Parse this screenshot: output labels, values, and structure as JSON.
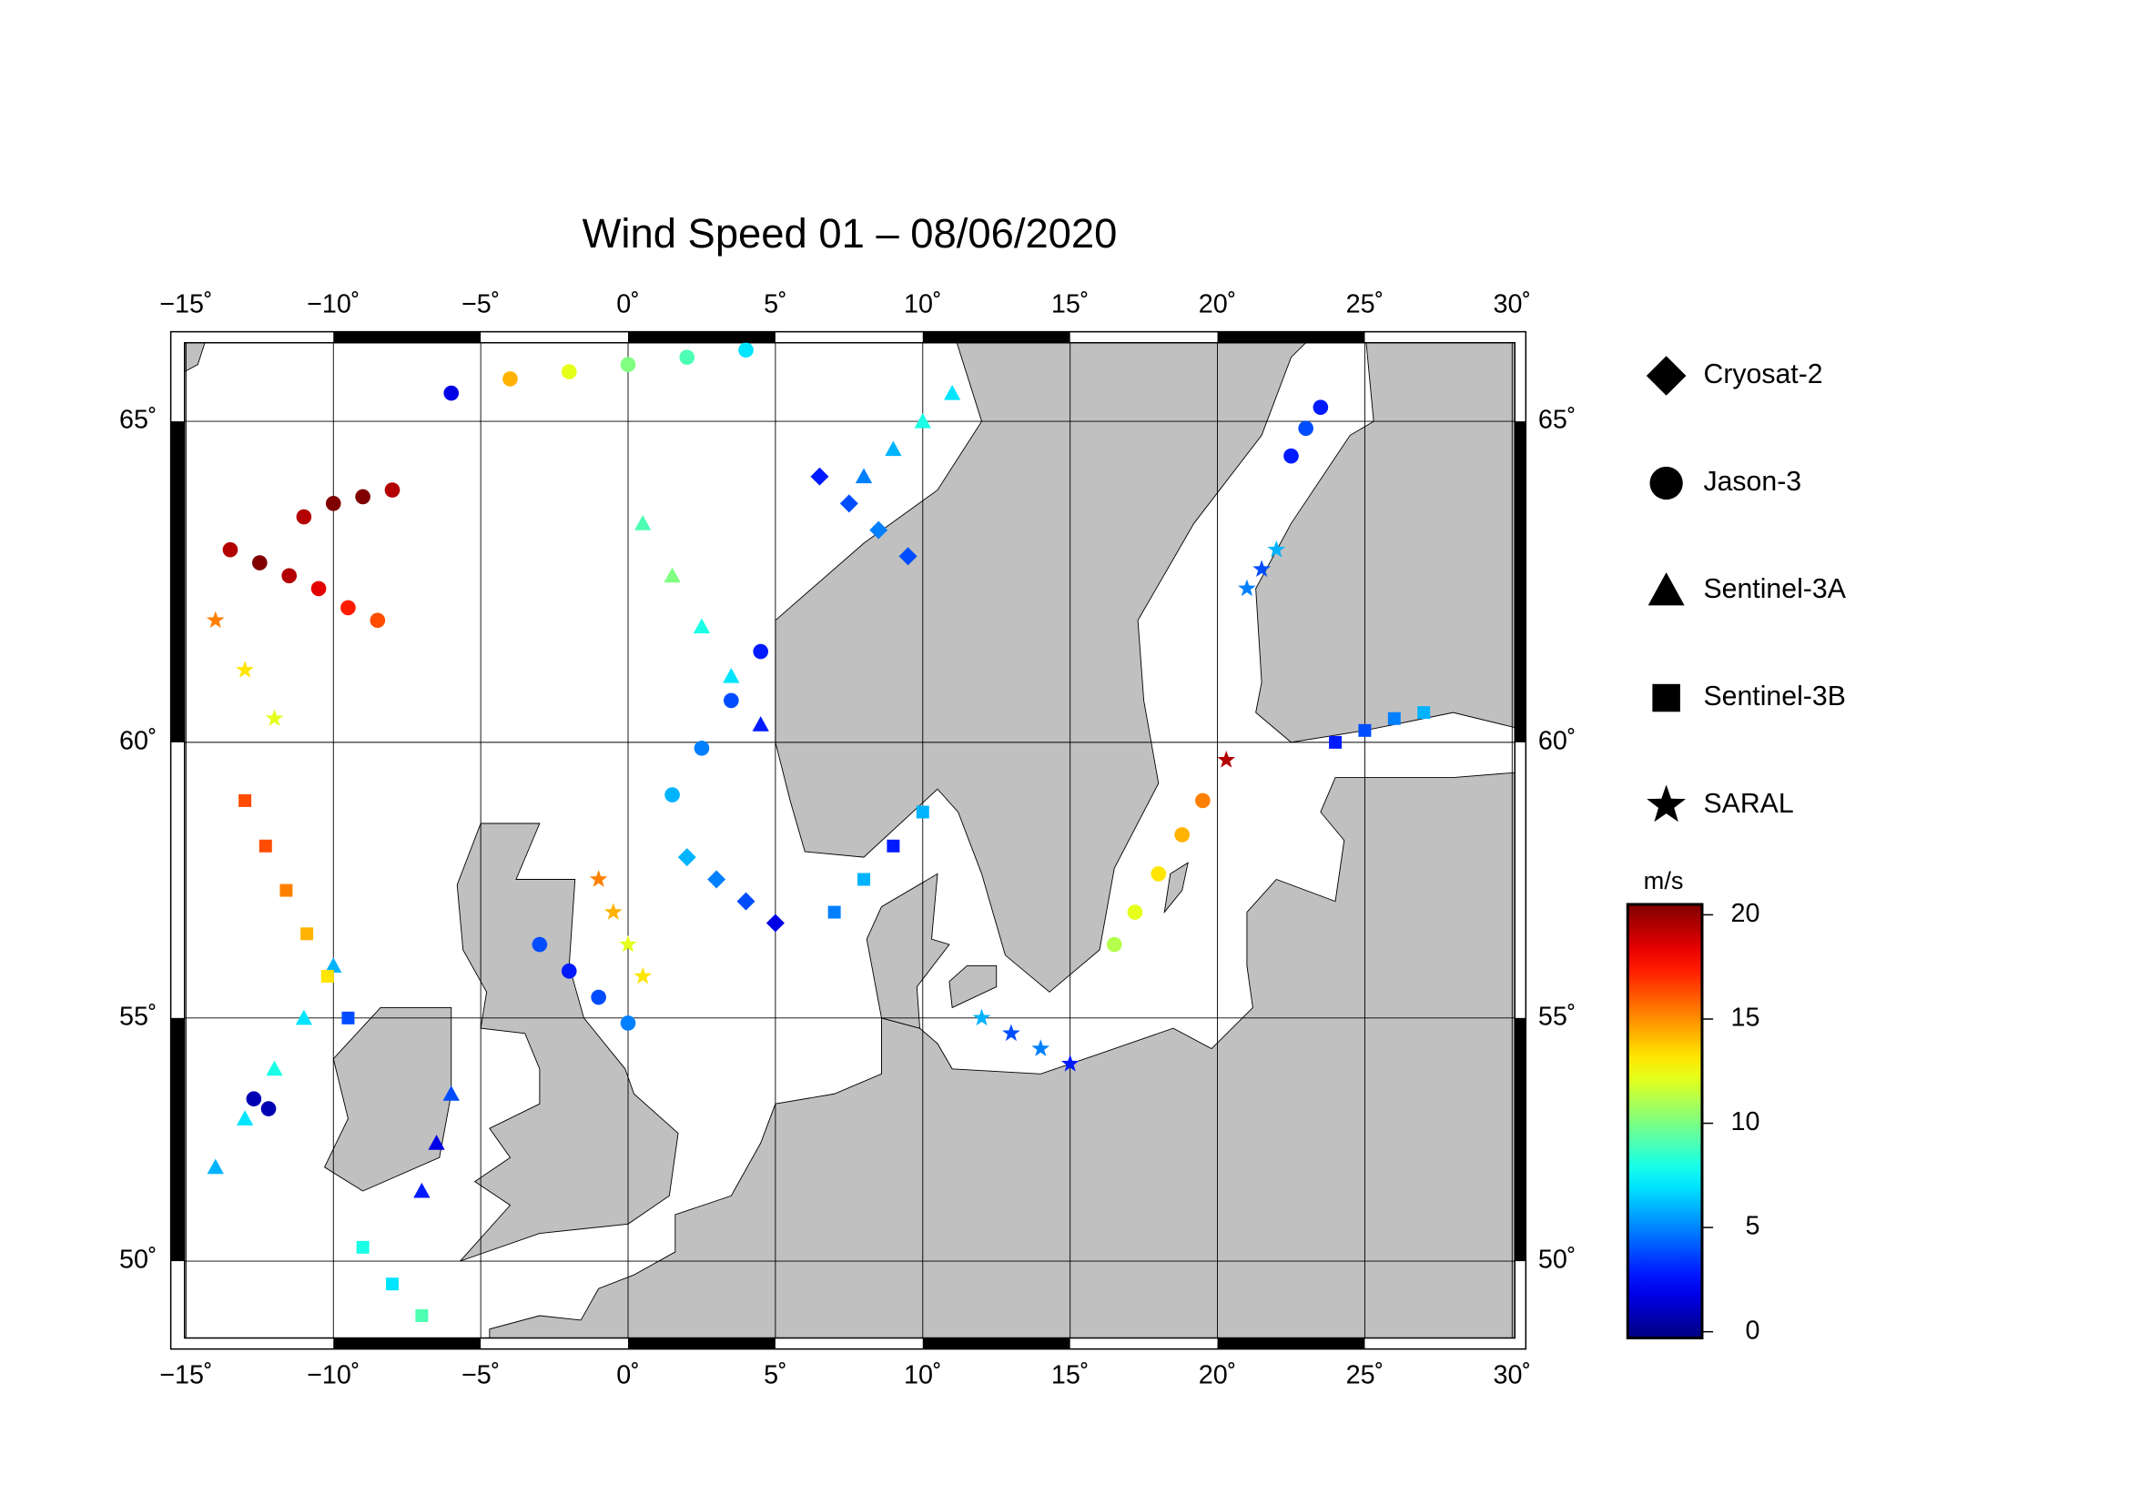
{
  "chart_data": {
    "type": "map",
    "title": "Wind Speed 01 – 08/06/2020",
    "xlim": [
      -15.05,
      30.09
    ],
    "ylim": [
      48.3,
      66.1
    ],
    "xticks": [
      {
        "value": -15,
        "label": "−15˚"
      },
      {
        "value": -10,
        "label": "−10˚"
      },
      {
        "value": -5,
        "label": "−5˚"
      },
      {
        "value": 0,
        "label": "0˚"
      },
      {
        "value": 5,
        "label": "5˚"
      },
      {
        "value": 10,
        "label": "10˚"
      },
      {
        "value": 15,
        "label": "15˚"
      },
      {
        "value": 20,
        "label": "20˚"
      },
      {
        "value": 25,
        "label": "25˚"
      },
      {
        "value": 30,
        "label": "30˚"
      }
    ],
    "yticks": [
      {
        "value": 50,
        "label": "50˚"
      },
      {
        "value": 55,
        "label": "55˚"
      },
      {
        "value": 60,
        "label": "60˚"
      },
      {
        "value": 65,
        "label": "65˚"
      }
    ],
    "grid": true,
    "colorbar": {
      "label": "m/s",
      "lim": [
        -0.3,
        20.5
      ],
      "ticks": [
        0,
        5,
        10,
        15,
        20
      ]
    },
    "series": [
      {
        "name": "Cryosat-2",
        "marker": "diamond",
        "lon": [
          6.5,
          7.5,
          8.5,
          9.5,
          2.0,
          3.0,
          4.0,
          5.0
        ],
        "lat": [
          64.2,
          63.8,
          63.4,
          63.0,
          58.0,
          57.6,
          57.2,
          56.8
        ],
        "values": [
          3,
          4,
          5,
          4,
          6,
          5,
          4,
          2
        ]
      },
      {
        "name": "Jason-3",
        "marker": "circle",
        "lon": [
          -13.5,
          -12.5,
          -11.5,
          -10.5,
          -9.5,
          -8.5,
          -11,
          -10,
          -9,
          -8,
          19.5,
          18.8,
          18.0,
          17.2,
          16.5,
          22.5,
          23,
          23.5,
          -3,
          -2,
          -1,
          0,
          -6,
          -4,
          -2,
          0,
          2,
          4,
          4.5,
          3.5,
          2.5,
          1.5,
          -12.7,
          -12.2
        ],
        "lat": [
          63.1,
          62.9,
          62.7,
          62.5,
          62.2,
          62.0,
          63.6,
          63.8,
          63.9,
          64.0,
          59.0,
          58.4,
          57.7,
          57.0,
          56.4,
          64.5,
          64.9,
          65.2,
          56.4,
          55.9,
          55.4,
          54.9,
          65.4,
          65.6,
          65.7,
          65.8,
          65.9,
          66.0,
          61.5,
          60.7,
          59.9,
          59.1,
          53.4,
          53.2
        ],
        "values": [
          19,
          20,
          19,
          18,
          17,
          16,
          19,
          20,
          20,
          19,
          15,
          14,
          13,
          12,
          11,
          3,
          4,
          3,
          4,
          3,
          4,
          5,
          2,
          14,
          12,
          10,
          9,
          7,
          3,
          4,
          5,
          6,
          1,
          1
        ]
      },
      {
        "name": "Sentinel-3A",
        "marker": "triangle",
        "lon": [
          -14,
          -13,
          -12,
          -11,
          -10,
          0.5,
          1.5,
          2.5,
          3.5,
          4.5,
          8,
          9,
          10,
          11,
          -7,
          -6.5,
          -6
        ],
        "lat": [
          52,
          53,
          54,
          55,
          56,
          63.5,
          62.7,
          61.9,
          61.1,
          60.3,
          64.2,
          64.6,
          65.0,
          65.4,
          51.5,
          52.5,
          53.5
        ],
        "values": [
          6,
          7,
          8,
          7,
          6,
          9,
          10,
          8,
          7,
          3,
          5,
          6,
          8,
          7,
          3,
          2,
          4
        ]
      },
      {
        "name": "Sentinel-3B",
        "marker": "square",
        "lon": [
          -13,
          -12.3,
          -11.6,
          -10.9,
          -10.2,
          -9.5,
          7,
          8,
          9,
          10,
          24,
          25,
          26,
          27,
          -9,
          -8,
          -7
        ],
        "lat": [
          59.0,
          58.2,
          57.4,
          56.6,
          55.8,
          55.0,
          57.0,
          57.6,
          58.2,
          58.8,
          60.0,
          60.2,
          60.4,
          60.5,
          50.3,
          49.5,
          48.8
        ],
        "values": [
          16,
          16,
          15,
          14,
          13,
          4,
          5,
          6,
          3,
          6,
          3,
          4,
          5,
          6,
          8,
          7,
          9
        ]
      },
      {
        "name": "SARAL",
        "marker": "star",
        "lon": [
          -14,
          -13,
          -12,
          -1,
          -0.5,
          0,
          0.5,
          20.3,
          21,
          21.5,
          22,
          12,
          13,
          14,
          15
        ],
        "lat": [
          62.0,
          61.2,
          60.4,
          57.6,
          57.0,
          56.4,
          55.8,
          59.7,
          62.5,
          62.8,
          63.1,
          55.0,
          54.7,
          54.4,
          54.1
        ],
        "values": [
          15,
          13,
          12,
          15,
          14,
          12,
          13,
          19,
          5,
          4,
          6,
          6,
          4,
          5,
          3
        ]
      }
    ]
  }
}
